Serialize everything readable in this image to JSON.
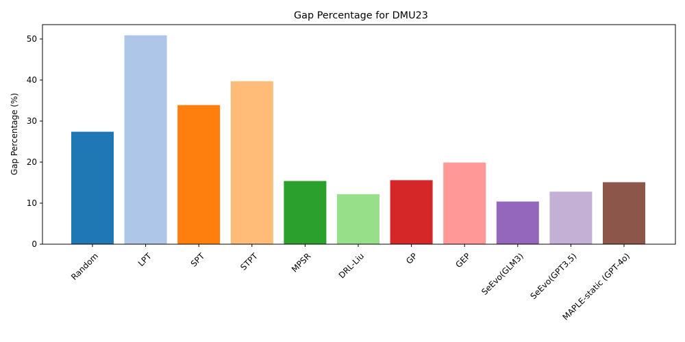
{
  "chart_data": {
    "type": "bar",
    "title": "Gap Percentage for DMU23",
    "xlabel": "",
    "ylabel": "Gap Percentage (%)",
    "ylim": [
      0,
      53.5
    ],
    "yticks": [
      0,
      10,
      20,
      30,
      40,
      50
    ],
    "grid": false,
    "legend": "none",
    "categories": [
      "Random",
      "LPT",
      "SPT",
      "STPT",
      "MPSR",
      "DRL-Liu",
      "GP",
      "GEP",
      "SeEvo(GLM3)",
      "SeEvo(GPT3.5)",
      "MAPLE-static (GPT-4o)"
    ],
    "values": [
      27.4,
      50.9,
      33.9,
      39.7,
      15.4,
      12.2,
      15.6,
      19.9,
      10.4,
      12.8,
      15.1
    ],
    "colors": [
      "#1f77b4",
      "#aec7e8",
      "#ff7f0e",
      "#ffbb78",
      "#2ca02c",
      "#98df8a",
      "#d62728",
      "#ff9896",
      "#9467bd",
      "#c5b0d5",
      "#8c564b"
    ]
  }
}
